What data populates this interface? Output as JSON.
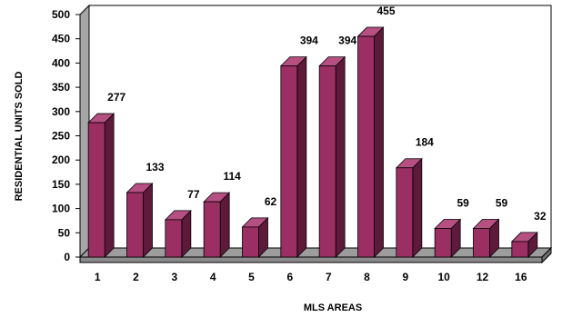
{
  "chart_data": {
    "type": "bar",
    "title": "",
    "xlabel": "MLS AREAS",
    "ylabel": "RESIDENTIAL UNITS SOLD",
    "categories": [
      "1",
      "2",
      "3",
      "4",
      "5",
      "6",
      "7",
      "8",
      "9",
      "10",
      "12",
      "16"
    ],
    "values": [
      277,
      133,
      77,
      114,
      62,
      394,
      394,
      455,
      184,
      59,
      59,
      32
    ],
    "ylim": [
      0,
      500
    ],
    "yticks": [
      0,
      50,
      100,
      150,
      200,
      250,
      300,
      350,
      400,
      450,
      500
    ],
    "data_labels": true,
    "grid": false,
    "style": "3d",
    "colors": {
      "bar_front": "#9b2f63",
      "bar_top": "#b64f82",
      "bar_side": "#5e1a3b",
      "back_wall": "#ffffff",
      "left_wall": "#a6a6a6",
      "floor": "#9d9d9d",
      "axis": "#000000"
    }
  }
}
